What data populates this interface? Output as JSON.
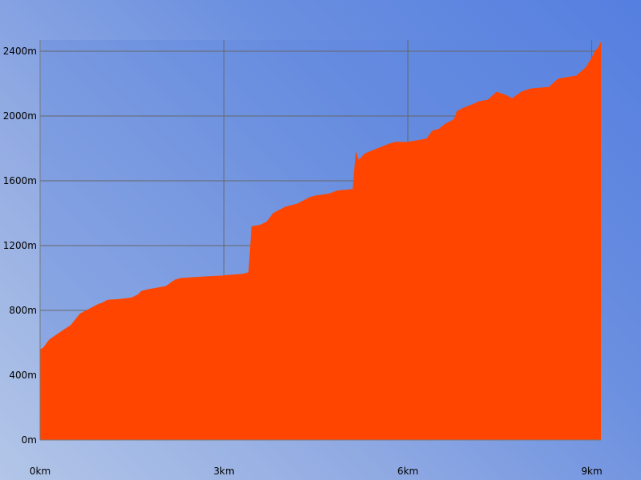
{
  "chart_data": {
    "type": "area",
    "title": "",
    "xlabel": "",
    "ylabel": "",
    "xlim": [
      0,
      9.15
    ],
    "ylim": [
      0,
      2400
    ],
    "x_ticks": [
      {
        "value": 0,
        "label": "0km"
      },
      {
        "value": 3,
        "label": "3km"
      },
      {
        "value": 6,
        "label": "6km"
      },
      {
        "value": 9,
        "label": "9km"
      }
    ],
    "y_ticks": [
      {
        "value": 0,
        "label": "0m"
      },
      {
        "value": 400,
        "label": "400m"
      },
      {
        "value": 800,
        "label": "800m"
      },
      {
        "value": 1200,
        "label": "1200m"
      },
      {
        "value": 1600,
        "label": "1600m"
      },
      {
        "value": 2000,
        "label": "2000m"
      },
      {
        "value": 2400,
        "label": "2400m"
      }
    ],
    "grid": true,
    "legend": "none",
    "colors": {
      "fill": "#ff4500",
      "grid": "#666666",
      "axis": "#7a7a7a"
    },
    "series": [
      {
        "x": [
          0,
          0.05,
          0.15,
          0.3,
          0.5,
          0.65,
          0.8,
          0.95,
          1.0,
          1.1,
          1.3,
          1.5,
          1.6,
          1.65,
          1.75,
          1.9,
          2.05,
          2.2,
          2.3,
          2.5,
          2.7,
          2.95,
          3.1,
          3.3,
          3.4,
          3.45,
          3.46,
          3.6,
          3.7,
          3.8,
          4.0,
          4.2,
          4.4,
          4.5,
          4.7,
          4.85,
          5.0,
          5.1,
          5.15,
          5.2,
          5.3,
          5.5,
          5.7,
          5.8,
          6.0,
          6.3,
          6.4,
          6.5,
          6.6,
          6.75,
          6.8,
          6.9,
          7.1,
          7.15,
          7.3,
          7.45,
          7.6,
          7.7,
          7.85,
          8.0,
          8.3,
          8.45,
          8.6,
          8.75,
          8.9,
          9.0,
          9.05,
          9.1,
          9.15
        ],
        "y": [
          560,
          570,
          620,
          660,
          710,
          780,
          810,
          840,
          845,
          865,
          870,
          880,
          900,
          920,
          930,
          940,
          950,
          990,
          1000,
          1005,
          1010,
          1015,
          1020,
          1025,
          1035,
          1320,
          1320,
          1330,
          1350,
          1400,
          1440,
          1460,
          1500,
          1510,
          1520,
          1540,
          1545,
          1550,
          1780,
          1730,
          1770,
          1800,
          1830,
          1840,
          1840,
          1860,
          1910,
          1920,
          1950,
          1980,
          2030,
          2050,
          2080,
          2090,
          2100,
          2150,
          2130,
          2110,
          2150,
          2170,
          2180,
          2230,
          2240,
          2250,
          2300,
          2360,
          2400,
          2420,
          2460
        ]
      }
    ]
  }
}
